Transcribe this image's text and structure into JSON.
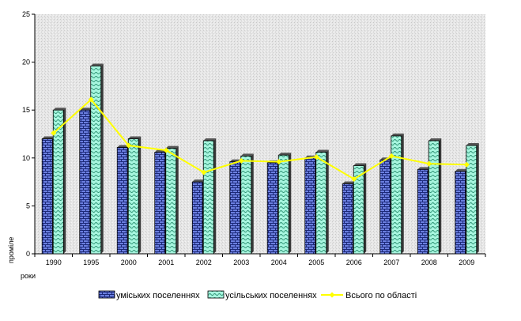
{
  "chart_data": {
    "type": "bar",
    "categories": [
      "1990",
      "1995",
      "2000",
      "2001",
      "2002",
      "2003",
      "2004",
      "2005",
      "2006",
      "2007",
      "2008",
      "2009"
    ],
    "series": [
      {
        "name": "уміських поселеннях",
        "kind": "bar",
        "color": "#6b7fe0",
        "values": [
          12.0,
          15.0,
          11.1,
          10.6,
          7.5,
          9.6,
          9.5,
          10.0,
          7.3,
          9.8,
          8.8,
          8.6
        ]
      },
      {
        "name": "усільських поселеннях",
        "kind": "bar",
        "color": "#9bf0d8",
        "values": [
          15.0,
          19.6,
          12.0,
          11.0,
          11.8,
          10.2,
          10.3,
          10.6,
          9.2,
          12.3,
          11.8,
          11.3
        ]
      },
      {
        "name": "Всього по області",
        "kind": "line",
        "color": "#ffff00",
        "values": [
          12.6,
          16.1,
          11.3,
          10.8,
          8.5,
          9.7,
          9.6,
          10.1,
          7.8,
          10.2,
          9.4,
          9.3
        ]
      }
    ],
    "ylabel": "проміле",
    "xlabel": "роки",
    "ylim": [
      0,
      25
    ],
    "yticks": [
      0,
      5,
      10,
      15,
      20,
      25
    ],
    "grid": false,
    "legend": "bottom"
  }
}
